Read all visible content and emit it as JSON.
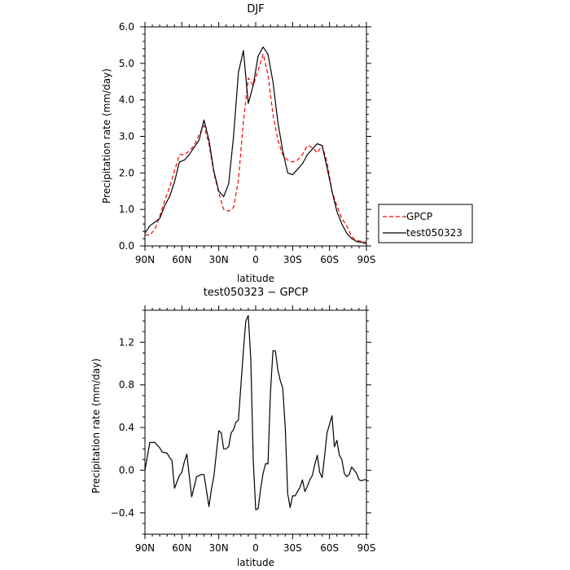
{
  "chart_data": [
    {
      "type": "line",
      "title": "DJF",
      "xlabel": "latitude",
      "ylabel": "Precipitation rate (mm/day)",
      "xlim": [
        90,
        -90
      ],
      "ylim": [
        0,
        6
      ],
      "x_ticks": [
        90,
        60,
        30,
        0,
        -30,
        -60,
        -90
      ],
      "x_tick_labels": [
        "90N",
        "60N",
        "30N",
        "0",
        "30S",
        "60S",
        "90S"
      ],
      "y_ticks": [
        0,
        1,
        2,
        3,
        4,
        5,
        6
      ],
      "y_tick_labels": [
        "0.0",
        "1.0",
        "2.0",
        "3.0",
        "4.0",
        "5.0",
        "6.0"
      ],
      "legend_position": "right",
      "series": [
        {
          "name": "GPCP",
          "color": "#ff0000",
          "dash": "dashed",
          "x": [
            90,
            86,
            82,
            78,
            74,
            70,
            66,
            62,
            58,
            54,
            50,
            46,
            42,
            38,
            34,
            30,
            26,
            22,
            18,
            14,
            10,
            6,
            2,
            -2,
            -6,
            -10,
            -14,
            -18,
            -22,
            -26,
            -30,
            -34,
            -38,
            -42,
            -46,
            -50,
            -54,
            -58,
            -62,
            -66,
            -70,
            -74,
            -78,
            -82,
            -86,
            -90
          ],
          "y": [
            0.3,
            0.3,
            0.45,
            0.8,
            1.25,
            1.6,
            2.05,
            2.5,
            2.5,
            2.6,
            2.75,
            3.05,
            3.3,
            2.8,
            2.0,
            1.45,
            1.0,
            0.95,
            1.05,
            1.8,
            3.4,
            4.6,
            4.4,
            4.8,
            5.25,
            4.7,
            3.6,
            2.9,
            2.5,
            2.35,
            2.3,
            2.35,
            2.5,
            2.75,
            2.7,
            2.55,
            2.75,
            2.3,
            1.5,
            1.1,
            0.75,
            0.55,
            0.25,
            0.15,
            0.12,
            0.1
          ]
        },
        {
          "name": "test050323",
          "color": "#000000",
          "dash": "solid",
          "x": [
            90,
            86,
            82,
            78,
            74,
            70,
            66,
            62,
            58,
            54,
            50,
            46,
            42,
            38,
            34,
            30,
            26,
            22,
            18,
            14,
            10,
            6,
            2,
            -2,
            -6,
            -10,
            -14,
            -18,
            -22,
            -26,
            -30,
            -34,
            -38,
            -42,
            -46,
            -50,
            -54,
            -58,
            -62,
            -66,
            -70,
            -74,
            -78,
            -82,
            -86,
            -90
          ],
          "y": [
            0.35,
            0.55,
            0.65,
            0.75,
            1.1,
            1.35,
            1.75,
            2.3,
            2.35,
            2.5,
            2.7,
            2.9,
            3.45,
            2.9,
            2.05,
            1.5,
            1.35,
            1.7,
            3.0,
            4.75,
            5.35,
            3.9,
            4.4,
            5.2,
            5.45,
            5.25,
            4.5,
            3.4,
            2.6,
            2.0,
            1.95,
            2.1,
            2.25,
            2.5,
            2.65,
            2.8,
            2.75,
            2.15,
            1.5,
            0.95,
            0.6,
            0.35,
            0.2,
            0.12,
            0.1,
            0.06
          ]
        }
      ]
    },
    {
      "type": "line",
      "title": "test050323 − GPCP",
      "xlabel": "latitude",
      "ylabel": "Precipitation rate (mm/day)",
      "xlim": [
        90,
        -90
      ],
      "ylim": [
        -0.6,
        1.5
      ],
      "x_ticks": [
        90,
        60,
        30,
        0,
        -30,
        -60,
        -90
      ],
      "x_tick_labels": [
        "90N",
        "60N",
        "30N",
        "0",
        "30S",
        "60S",
        "90S"
      ],
      "y_ticks": [
        -0.4,
        0,
        0.4,
        0.8,
        1.2
      ],
      "y_tick_labels": [
        "−0.4",
        "0.0",
        "0.4",
        "0.8",
        "1.2"
      ],
      "series": [
        {
          "color": "#000000",
          "dash": "solid",
          "x": [
            90,
            86,
            82,
            78,
            76,
            72,
            70,
            68,
            66,
            62,
            60,
            58,
            56,
            52,
            48,
            44,
            42,
            38,
            36,
            34,
            30,
            28,
            26,
            24,
            22,
            20,
            18,
            16,
            14,
            12,
            10,
            8,
            6,
            4,
            2,
            0,
            -2,
            -4,
            -6,
            -8,
            -10,
            -12,
            -14,
            -16,
            -18,
            -20,
            -22,
            -24,
            -26,
            -28,
            -30,
            -32,
            -34,
            -36,
            -38,
            -40,
            -42,
            -44,
            -46,
            -48,
            -50,
            -52,
            -54,
            -56,
            -58,
            -60,
            -62,
            -64,
            -66,
            -68,
            -70,
            -72,
            -74,
            -76,
            -78,
            -80,
            -82,
            -84,
            -86,
            -88,
            -90
          ],
          "y": [
            0.0,
            0.26,
            0.26,
            0.21,
            0.17,
            0.16,
            0.12,
            0.09,
            -0.17,
            -0.05,
            -0.02,
            0.08,
            0.15,
            -0.25,
            -0.06,
            -0.04,
            -0.04,
            -0.34,
            -0.18,
            -0.06,
            0.37,
            0.35,
            0.2,
            0.2,
            0.22,
            0.35,
            0.38,
            0.45,
            0.47,
            0.8,
            1.12,
            1.4,
            1.45,
            1.04,
            0.1,
            -0.37,
            -0.36,
            -0.18,
            -0.03,
            0.06,
            0.06,
            0.72,
            1.12,
            1.12,
            0.94,
            0.84,
            0.77,
            0.4,
            -0.22,
            -0.35,
            -0.24,
            -0.24,
            -0.2,
            -0.16,
            -0.09,
            -0.2,
            -0.15,
            -0.09,
            -0.05,
            0.05,
            0.14,
            -0.02,
            -0.07,
            0.13,
            0.35,
            0.43,
            0.51,
            0.22,
            0.28,
            0.14,
            0.1,
            -0.03,
            -0.06,
            -0.04,
            0.03,
            0.0,
            -0.03,
            -0.09,
            -0.1,
            -0.09,
            -0.09
          ]
        }
      ]
    }
  ]
}
